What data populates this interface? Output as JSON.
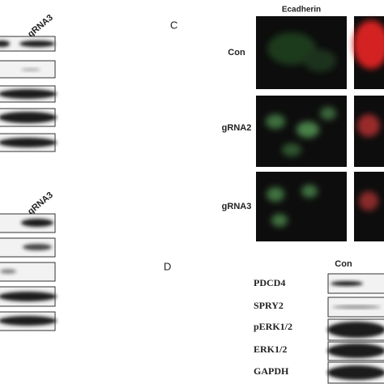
{
  "panel_a": {
    "lane_label": "gRNA3"
  },
  "panel_b": {
    "lane_label": "gRNA3"
  },
  "panel_c": {
    "label": "C",
    "column_header": "Ecadherin",
    "rows": [
      "Con",
      "gRNA2",
      "gRNA3"
    ]
  },
  "panel_d": {
    "label": "D",
    "lane_label": "Con",
    "proteins": [
      "PDCD4",
      "SPRY2",
      "pERK1/2",
      "ERK1/2",
      "GAPDH"
    ]
  }
}
